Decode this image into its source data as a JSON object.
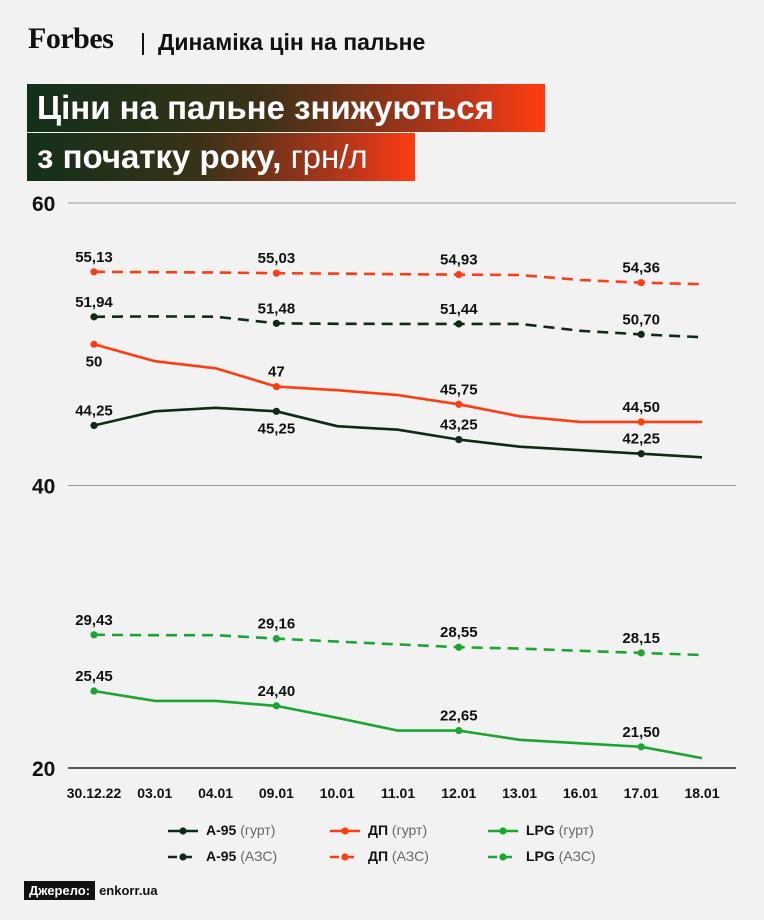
{
  "brand": "Forbes",
  "subtitle": "Динаміка цін на пальне",
  "title_line1": "Ціни на пальне знижуються",
  "title_line2_main": "з початку року,",
  "title_line2_unit": "грн/л",
  "source_label": "Джерело:",
  "source_value": "enkorr.ua",
  "colors": {
    "a95": "#0f2b15",
    "dp": "#ff3d12",
    "lpg": "#1aa631"
  },
  "chart_data": {
    "type": "line",
    "categories": [
      "30.12.22",
      "03.01",
      "04.01",
      "09.01",
      "10.01",
      "11.01",
      "12.01",
      "13.01",
      "16.01",
      "17.01",
      "18.01"
    ],
    "ylim": [
      20,
      60
    ],
    "yticks": [
      20,
      40,
      60
    ],
    "grid": true,
    "legend": "bottom",
    "series": [
      {
        "id": "dp_azs",
        "name": "ДП (АЗС)",
        "color": "#ff3d12",
        "dashed": true,
        "values": [
          55.13,
          55.1,
          55.08,
          55.03,
          55.0,
          54.96,
          54.93,
          54.9,
          54.55,
          54.36,
          54.25
        ],
        "labels": [
          {
            "i": 0,
            "text": "55,13",
            "pos": "above"
          },
          {
            "i": 3,
            "text": "55,03",
            "pos": "above"
          },
          {
            "i": 6,
            "text": "54,93",
            "pos": "above"
          },
          {
            "i": 9,
            "text": "54,36",
            "pos": "above"
          }
        ]
      },
      {
        "id": "a95_azs",
        "name": "А-95 (АЗС)",
        "color": "#0f2b15",
        "dashed": true,
        "values": [
          51.94,
          51.97,
          51.95,
          51.48,
          51.45,
          51.44,
          51.44,
          51.44,
          50.95,
          50.7,
          50.5
        ],
        "labels": [
          {
            "i": 0,
            "text": "51,94",
            "pos": "above"
          },
          {
            "i": 3,
            "text": "51,48",
            "pos": "above"
          },
          {
            "i": 6,
            "text": "51,44",
            "pos": "above"
          },
          {
            "i": 9,
            "text": "50,70",
            "pos": "above"
          }
        ]
      },
      {
        "id": "dp_wholesale",
        "name": "ДП (гурт)",
        "color": "#ff3d12",
        "dashed": false,
        "values": [
          50.0,
          48.8,
          48.3,
          47.0,
          46.75,
          46.4,
          45.75,
          44.9,
          44.5,
          44.5,
          44.5
        ],
        "labels": [
          {
            "i": 0,
            "text": "50",
            "pos": "below"
          },
          {
            "i": 3,
            "text": "47",
            "pos": "above"
          },
          {
            "i": 6,
            "text": "45,75",
            "pos": "above"
          },
          {
            "i": 9,
            "text": "44,50",
            "pos": "above"
          }
        ]
      },
      {
        "id": "a95_wholesale",
        "name": "А-95 (гурт)",
        "color": "#0f2b15",
        "dashed": false,
        "values": [
          44.25,
          45.25,
          45.5,
          45.25,
          44.2,
          43.95,
          43.25,
          42.75,
          42.5,
          42.25,
          42.0
        ],
        "labels": [
          {
            "i": 0,
            "text": "44,25",
            "pos": "above"
          },
          {
            "i": 3,
            "text": "45,25",
            "pos": "below"
          },
          {
            "i": 6,
            "text": "43,25",
            "pos": "above"
          },
          {
            "i": 9,
            "text": "42,25",
            "pos": "above"
          }
        ]
      },
      {
        "id": "lpg_azs",
        "name": "LPG (АЗС)",
        "color": "#1aa631",
        "dashed": true,
        "values": [
          29.43,
          29.4,
          29.4,
          29.16,
          28.95,
          28.75,
          28.55,
          28.45,
          28.3,
          28.15,
          28.0
        ],
        "labels": [
          {
            "i": 0,
            "text": "29,43",
            "pos": "above"
          },
          {
            "i": 3,
            "text": "29,16",
            "pos": "above"
          },
          {
            "i": 6,
            "text": "28,55",
            "pos": "above"
          },
          {
            "i": 9,
            "text": "28,15",
            "pos": "above"
          }
        ]
      },
      {
        "id": "lpg_wholesale",
        "name": "LPG (гурт)",
        "color": "#1aa631",
        "dashed": false,
        "values": [
          25.45,
          24.75,
          24.75,
          24.4,
          23.55,
          22.65,
          22.65,
          22.0,
          21.75,
          21.5,
          20.7
        ],
        "labels": [
          {
            "i": 0,
            "text": "25,45",
            "pos": "above"
          },
          {
            "i": 3,
            "text": "24,40",
            "pos": "above"
          },
          {
            "i": 6,
            "text": "22,65",
            "pos": "above"
          },
          {
            "i": 9,
            "text": "21,50",
            "pos": "above"
          }
        ]
      }
    ],
    "markers_at": [
      0,
      3,
      6,
      9
    ],
    "legend_rows": [
      [
        {
          "ref": "a95_wholesale",
          "bold": "А-95",
          "muted": "(гурт)"
        },
        {
          "ref": "dp_wholesale",
          "bold": "ДП",
          "muted": "(гурт)"
        },
        {
          "ref": "lpg_wholesale",
          "bold": "LPG",
          "muted": "(гурт)"
        }
      ],
      [
        {
          "ref": "a95_azs",
          "bold": "А-95",
          "muted": "(АЗС)"
        },
        {
          "ref": "dp_azs",
          "bold": "ДП",
          "muted": "(АЗС)"
        },
        {
          "ref": "lpg_azs",
          "bold": "LPG",
          "muted": "(АЗС)"
        }
      ]
    ]
  }
}
